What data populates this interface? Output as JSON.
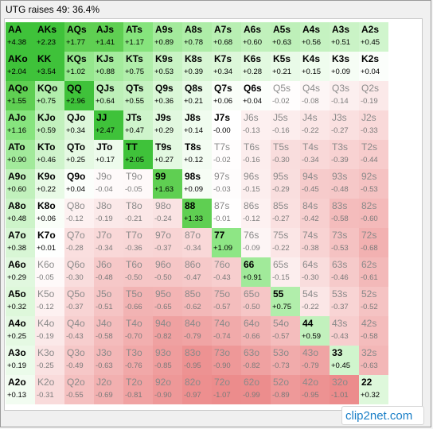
{
  "window": {
    "title": "UTG raises 49: 36.4%"
  },
  "logo": {
    "text": "clip2net.com"
  },
  "colors": {
    "positive": "#28c428",
    "negative": "#ee7272"
  },
  "grid": {
    "rows": [
      [
        [
          "AA",
          "+4.38"
        ],
        [
          "AKs",
          "+2.23"
        ],
        [
          "AQs",
          "+1.77"
        ],
        [
          "AJs",
          "+1.41"
        ],
        [
          "ATs",
          "+1.17"
        ],
        [
          "A9s",
          "+0.89"
        ],
        [
          "A8s",
          "+0.78"
        ],
        [
          "A7s",
          "+0.68"
        ],
        [
          "A6s",
          "+0.60"
        ],
        [
          "A5s",
          "+0.63"
        ],
        [
          "A4s",
          "+0.56"
        ],
        [
          "A3s",
          "+0.51"
        ],
        [
          "A2s",
          "+0.45"
        ]
      ],
      [
        [
          "AKo",
          "+2.04"
        ],
        [
          "KK",
          "+3.54"
        ],
        [
          "KQs",
          "+1.02"
        ],
        [
          "KJs",
          "+0.88"
        ],
        [
          "KTs",
          "+0.75"
        ],
        [
          "K9s",
          "+0.53"
        ],
        [
          "K8s",
          "+0.39"
        ],
        [
          "K7s",
          "+0.34"
        ],
        [
          "K6s",
          "+0.28"
        ],
        [
          "K5s",
          "+0.21"
        ],
        [
          "K4s",
          "+0.15"
        ],
        [
          "K3s",
          "+0.09"
        ],
        [
          "K2s",
          "+0.04"
        ]
      ],
      [
        [
          "AQo",
          "+1.55"
        ],
        [
          "KQo",
          "+0.75"
        ],
        [
          "QQ",
          "+2.96"
        ],
        [
          "QJs",
          "+0.64"
        ],
        [
          "QTs",
          "+0.55"
        ],
        [
          "Q9s",
          "+0.36"
        ],
        [
          "Q8s",
          "+0.21"
        ],
        [
          "Q7s",
          "+0.06"
        ],
        [
          "Q6s",
          "+0.04"
        ],
        [
          "Q5s",
          "-0.02"
        ],
        [
          "Q4s",
          "-0.08"
        ],
        [
          "Q3s",
          "-0.14"
        ],
        [
          "Q2s",
          "-0.19"
        ]
      ],
      [
        [
          "AJo",
          "+1.16"
        ],
        [
          "KJo",
          "+0.59"
        ],
        [
          "QJo",
          "+0.34"
        ],
        [
          "JJ",
          "+2.47"
        ],
        [
          "JTs",
          "+0.47"
        ],
        [
          "J9s",
          "+0.29"
        ],
        [
          "J8s",
          "+0.14"
        ],
        [
          "J7s",
          "-0.00"
        ],
        [
          "J6s",
          "-0.13"
        ],
        [
          "J5s",
          "-0.16"
        ],
        [
          "J4s",
          "-0.22"
        ],
        [
          "J3s",
          "-0.27"
        ],
        [
          "J2s",
          "-0.33"
        ]
      ],
      [
        [
          "ATo",
          "+0.90"
        ],
        [
          "KTo",
          "+0.46"
        ],
        [
          "QTo",
          "+0.25"
        ],
        [
          "JTo",
          "+0.17"
        ],
        [
          "TT",
          "+2.05"
        ],
        [
          "T9s",
          "+0.27"
        ],
        [
          "T8s",
          "+0.12"
        ],
        [
          "T7s",
          "-0.02"
        ],
        [
          "T6s",
          "-0.16"
        ],
        [
          "T5s",
          "-0.30"
        ],
        [
          "T4s",
          "-0.34"
        ],
        [
          "T3s",
          "-0.39"
        ],
        [
          "T2s",
          "-0.44"
        ]
      ],
      [
        [
          "A9o",
          "+0.60"
        ],
        [
          "K9o",
          "+0.22"
        ],
        [
          "Q9o",
          "+0.04"
        ],
        [
          "J9o",
          "-0.04"
        ],
        [
          "T9o",
          "-0.05"
        ],
        [
          "99",
          "+1.63"
        ],
        [
          "98s",
          "+0.09"
        ],
        [
          "97s",
          "-0.03"
        ],
        [
          "96s",
          "-0.15"
        ],
        [
          "95s",
          "-0.29"
        ],
        [
          "94s",
          "-0.45"
        ],
        [
          "93s",
          "-0.48"
        ],
        [
          "92s",
          "-0.53"
        ]
      ],
      [
        [
          "A8o",
          "+0.48"
        ],
        [
          "K8o",
          "+0.06"
        ],
        [
          "Q8o",
          "-0.12"
        ],
        [
          "J8o",
          "-0.19"
        ],
        [
          "T8o",
          "-0.21"
        ],
        [
          "98o",
          "-0.24"
        ],
        [
          "88",
          "+1.33"
        ],
        [
          "87s",
          "-0.01"
        ],
        [
          "86s",
          "-0.12"
        ],
        [
          "85s",
          "-0.27"
        ],
        [
          "84s",
          "-0.42"
        ],
        [
          "83s",
          "-0.58"
        ],
        [
          "82s",
          "-0.60"
        ]
      ],
      [
        [
          "A7o",
          "+0.38"
        ],
        [
          "K7o",
          "+0.01"
        ],
        [
          "Q7o",
          "-0.28"
        ],
        [
          "J7o",
          "-0.34"
        ],
        [
          "T7o",
          "-0.36"
        ],
        [
          "97o",
          "-0.37"
        ],
        [
          "87o",
          "-0.34"
        ],
        [
          "77",
          "+1.09"
        ],
        [
          "76s",
          "-0.09"
        ],
        [
          "75s",
          "-0.22"
        ],
        [
          "74s",
          "-0.38"
        ],
        [
          "73s",
          "-0.53"
        ],
        [
          "72s",
          "-0.68"
        ]
      ],
      [
        [
          "A6o",
          "+0.29"
        ],
        [
          "K6o",
          "-0.05"
        ],
        [
          "Q6o",
          "-0.30"
        ],
        [
          "J6o",
          "-0.48"
        ],
        [
          "T6o",
          "-0.50"
        ],
        [
          "96o",
          "-0.50"
        ],
        [
          "86o",
          "-0.47"
        ],
        [
          "76o",
          "-0.43"
        ],
        [
          "66",
          "+0.91"
        ],
        [
          "65s",
          "-0.15"
        ],
        [
          "64s",
          "-0.30"
        ],
        [
          "63s",
          "-0.46"
        ],
        [
          "62s",
          "-0.61"
        ]
      ],
      [
        [
          "A5o",
          "+0.32"
        ],
        [
          "K5o",
          "-0.12"
        ],
        [
          "Q5o",
          "-0.37"
        ],
        [
          "J5o",
          "-0.51"
        ],
        [
          "T5o",
          "-0.66"
        ],
        [
          "95o",
          "-0.65"
        ],
        [
          "85o",
          "-0.62"
        ],
        [
          "75o",
          "-0.57"
        ],
        [
          "65o",
          "-0.50"
        ],
        [
          "55",
          "+0.75"
        ],
        [
          "54s",
          "-0.22"
        ],
        [
          "53s",
          "-0.37"
        ],
        [
          "52s",
          "-0.52"
        ]
      ],
      [
        [
          "A4o",
          "+0.25"
        ],
        [
          "K4o",
          "-0.19"
        ],
        [
          "Q4o",
          "-0.43"
        ],
        [
          "J4o",
          "-0.58"
        ],
        [
          "T4o",
          "-0.70"
        ],
        [
          "94o",
          "-0.82"
        ],
        [
          "84o",
          "-0.79"
        ],
        [
          "74o",
          "-0.74"
        ],
        [
          "64o",
          "-0.66"
        ],
        [
          "54o",
          "-0.57"
        ],
        [
          "44",
          "+0.59"
        ],
        [
          "43s",
          "-0.43"
        ],
        [
          "42s",
          "-0.58"
        ]
      ],
      [
        [
          "A3o",
          "+0.19"
        ],
        [
          "K3o",
          "-0.25"
        ],
        [
          "Q3o",
          "-0.49"
        ],
        [
          "J3o",
          "-0.63"
        ],
        [
          "T3o",
          "-0.76"
        ],
        [
          "93o",
          "-0.85"
        ],
        [
          "83o",
          "-0.95"
        ],
        [
          "73o",
          "-0.90"
        ],
        [
          "63o",
          "-0.82"
        ],
        [
          "53o",
          "-0.73"
        ],
        [
          "43o",
          "-0.79"
        ],
        [
          "33",
          "+0.45"
        ],
        [
          "32s",
          "-0.63"
        ]
      ],
      [
        [
          "A2o",
          "+0.13"
        ],
        [
          "K2o",
          "-0.31"
        ],
        [
          "Q2o",
          "-0.55"
        ],
        [
          "J2o",
          "-0.69"
        ],
        [
          "T2o",
          "-0.81"
        ],
        [
          "92o",
          "-0.90"
        ],
        [
          "82o",
          "-0.97"
        ],
        [
          "72o",
          "-1.07"
        ],
        [
          "62o",
          "-0.99"
        ],
        [
          "52o",
          "-0.89"
        ],
        [
          "42o",
          "-0.95"
        ],
        [
          "32o",
          "-1.01"
        ],
        [
          "22",
          "+0.32"
        ]
      ]
    ]
  }
}
